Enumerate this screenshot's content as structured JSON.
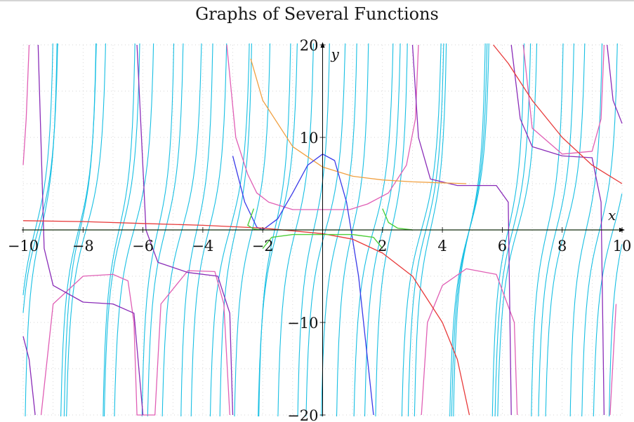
{
  "chart_data": {
    "type": "line",
    "title": "Graphs of Several Functions",
    "xlabel": "x",
    "ylabel": "y",
    "xlim": [
      -10,
      10
    ],
    "ylim": [
      -20,
      20
    ],
    "grid": true,
    "x_ticks": [
      {
        "value": -10,
        "label": "−10"
      },
      {
        "value": -8,
        "label": "−8"
      },
      {
        "value": -6,
        "label": "−6"
      },
      {
        "value": -4,
        "label": "−4"
      },
      {
        "value": -2,
        "label": "−2"
      },
      {
        "value": 2,
        "label": "2"
      },
      {
        "value": 4,
        "label": "4"
      },
      {
        "value": 6,
        "label": "6"
      },
      {
        "value": 8,
        "label": "8"
      },
      {
        "value": 10,
        "label": "10"
      }
    ],
    "y_ticks": [
      {
        "value": 20,
        "label": "20"
      },
      {
        "value": 10,
        "label": "10"
      },
      {
        "value": -10,
        "label": "−10"
      },
      {
        "value": -20,
        "label": "−20"
      }
    ],
    "series": [
      {
        "color": "#17bfe3",
        "kind": "tangent_family",
        "domain": [
          -10,
          10
        ],
        "periods": [
          1.6,
          1.45,
          1.3
        ],
        "offsets": [
          0.1,
          0.55,
          1.0
        ],
        "amplitude": 6
      },
      {
        "color": "#e05fb5",
        "kind": "branches",
        "domain": [
          -10,
          10
        ],
        "description_points": [
          [
            -10,
            7
          ],
          [
            -9.9,
            12
          ],
          [
            -9.8,
            20
          ],
          [
            -9.4,
            -20
          ],
          [
            -9.0,
            -8
          ],
          [
            -8.0,
            -5
          ],
          [
            -7.0,
            -4.8
          ],
          [
            -6.5,
            -5.5
          ],
          [
            -6.3,
            -10
          ],
          [
            -6.2,
            -20
          ],
          [
            -5.6,
            -20
          ],
          [
            -5.4,
            -8
          ],
          [
            -4.5,
            -4.4
          ],
          [
            -3.6,
            -4.5
          ],
          [
            -3.3,
            -8
          ],
          [
            -3.1,
            -20
          ],
          [
            -3.2,
            20
          ],
          [
            -2.9,
            10
          ],
          [
            -2.5,
            6
          ],
          [
            -2.2,
            4
          ],
          [
            -1.8,
            3
          ],
          [
            -1.0,
            2.2
          ],
          [
            0.9,
            2.2
          ],
          [
            1.5,
            2.8
          ],
          [
            2.2,
            4
          ],
          [
            2.8,
            7
          ],
          [
            3.1,
            12
          ],
          [
            3.2,
            20
          ],
          [
            3.3,
            -20
          ],
          [
            3.5,
            -10
          ],
          [
            4.0,
            -6
          ],
          [
            4.8,
            -4.2
          ],
          [
            5.8,
            -4.8
          ],
          [
            6.4,
            -10
          ],
          [
            6.5,
            -20
          ],
          [
            6.7,
            20
          ],
          [
            7.0,
            11
          ],
          [
            8.0,
            8.2
          ],
          [
            9.0,
            8.5
          ],
          [
            9.3,
            12
          ],
          [
            9.4,
            20
          ],
          [
            9.6,
            -20
          ],
          [
            9.8,
            -8
          ]
        ]
      },
      {
        "color": "#8a2cb8",
        "kind": "branches",
        "domain": [
          -10,
          10
        ],
        "description_points": [
          [
            -10,
            -11.5
          ],
          [
            -9.8,
            -14
          ],
          [
            -9.6,
            -20
          ],
          [
            -9.5,
            20
          ],
          [
            -9.3,
            -2
          ],
          [
            -9.0,
            -6
          ],
          [
            -8.0,
            -7.8
          ],
          [
            -7.0,
            -8.0
          ],
          [
            -6.3,
            -9
          ],
          [
            -6.0,
            -20
          ],
          [
            -6.2,
            20
          ],
          [
            -5.9,
            0
          ],
          [
            -5.5,
            -3.5
          ],
          [
            -4.5,
            -4.6
          ],
          [
            -3.5,
            -5
          ],
          [
            -3.1,
            -9
          ],
          [
            -3.0,
            -20
          ],
          [
            3.0,
            20
          ],
          [
            3.2,
            10
          ],
          [
            3.6,
            5.5
          ],
          [
            4.5,
            4.8
          ],
          [
            5.8,
            4.8
          ],
          [
            6.2,
            3
          ],
          [
            6.3,
            -20
          ],
          [
            6.3,
            20
          ],
          [
            6.6,
            12
          ],
          [
            7.0,
            9
          ],
          [
            8.0,
            8.0
          ],
          [
            9.0,
            7.8
          ],
          [
            9.3,
            3
          ],
          [
            9.4,
            -20
          ],
          [
            9.5,
            20
          ],
          [
            9.7,
            14
          ],
          [
            10,
            11.5
          ]
        ]
      },
      {
        "color": "#f0a040",
        "kind": "curve",
        "domain": [
          -2.5,
          4.8
        ],
        "description_points": [
          [
            -2.4,
            18.5
          ],
          [
            -2.0,
            14
          ],
          [
            -1.0,
            9
          ],
          [
            0.0,
            6.8
          ],
          [
            1.0,
            5.8
          ],
          [
            2.0,
            5.4
          ],
          [
            3.0,
            5.2
          ],
          [
            4.8,
            5.0
          ]
        ]
      },
      {
        "color": "#3a3ae8",
        "kind": "curve",
        "domain": [
          -3.0,
          1.7
        ],
        "description_points": [
          [
            -3.0,
            8
          ],
          [
            -2.6,
            3
          ],
          [
            -2.2,
            0.3
          ],
          [
            -2.0,
            0.0
          ],
          [
            -1.5,
            1.2
          ],
          [
            -1.0,
            4
          ],
          [
            -0.5,
            7
          ],
          [
            0.0,
            8.2
          ],
          [
            0.4,
            7.5
          ],
          [
            0.8,
            3
          ],
          [
            1.2,
            -5
          ],
          [
            1.5,
            -14
          ],
          [
            1.7,
            -20
          ]
        ]
      },
      {
        "color": "#e83a3a",
        "kind": "curve",
        "domain": [
          -10,
          10
        ],
        "description_points": [
          [
            -10,
            1.0
          ],
          [
            -8,
            0.9
          ],
          [
            -6,
            0.7
          ],
          [
            -4,
            0.5
          ],
          [
            -2,
            0.2
          ],
          [
            0,
            -0.4
          ],
          [
            1,
            -1
          ],
          [
            2,
            -2.5
          ],
          [
            3,
            -5
          ],
          [
            4,
            -10
          ],
          [
            4.5,
            -14
          ],
          [
            4.9,
            -20
          ],
          [
            5.7,
            20
          ],
          [
            6.2,
            18
          ],
          [
            7.0,
            14
          ],
          [
            8.0,
            10
          ],
          [
            9.0,
            7
          ],
          [
            10,
            5
          ]
        ]
      },
      {
        "color": "#4fcf3a",
        "kind": "curve",
        "domain": [
          -10,
          10
        ],
        "description_points": [
          [
            -10,
            0
          ],
          [
            10,
            0
          ]
        ],
        "extra_arcs": [
          [
            [
              -2.3,
              2.3
            ],
            [
              -2.5,
              0.5
            ],
            [
              -2.3,
              0.1
            ],
            [
              -2.0,
              0.0
            ]
          ],
          [
            [
              -2.0,
              -2.0
            ],
            [
              -1.7,
              -0.8
            ],
            [
              -1.0,
              -0.5
            ],
            [
              1.0,
              -0.5
            ],
            [
              1.7,
              -0.8
            ],
            [
              2.0,
              -2.0
            ]
          ],
          [
            [
              2.0,
              2.3
            ],
            [
              2.2,
              0.8
            ],
            [
              2.5,
              0.2
            ],
            [
              3.0,
              0.0
            ]
          ]
        ]
      }
    ]
  }
}
